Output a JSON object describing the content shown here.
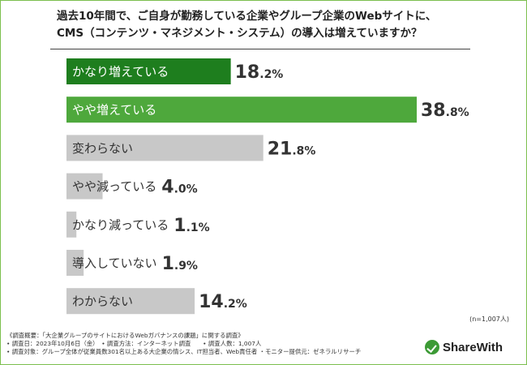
{
  "title": {
    "line1": "過去10年間で、ご自身が勤務している企業やグループ企業のWebサイトに、",
    "line2": "CMS（コンテンツ・マネジメント・システム）の導入は増えていますか？"
  },
  "colors": {
    "dark_green": "#1e7e1e",
    "light_green": "#4ea83c",
    "gray": "#c8c8c8",
    "frame": "#7cbf4e"
  },
  "chart_data": {
    "type": "bar",
    "orientation": "horizontal",
    "title": "過去10年間で、ご自身が勤務している企業やグループ企業のWebサイトに、CMS（コンテンツ・マネジメント・システム）の導入は増えていますか？",
    "categories": [
      "かなり増えている",
      "やや増えている",
      "変わらない",
      "やや減っている",
      "かなり減っている",
      "導入していない",
      "わからない"
    ],
    "values": [
      18.2,
      38.8,
      21.8,
      4.0,
      1.1,
      1.9,
      14.2
    ],
    "value_labels": [
      "18.2%",
      "38.8%",
      "21.8%",
      "4.0%",
      "1.1%",
      "1.9%",
      "14.2%"
    ],
    "bar_colors": [
      "#1e7e1e",
      "#4ea83c",
      "#c8c8c8",
      "#c8c8c8",
      "#c8c8c8",
      "#c8c8c8",
      "#c8c8c8"
    ],
    "label_colors": [
      "#ffffff",
      "#ffffff",
      "#333333",
      "#333333",
      "#333333",
      "#333333",
      "#333333"
    ],
    "unit": "%",
    "xlim": [
      0,
      40
    ],
    "grid": false
  },
  "sample_note": "(n=1,007人)",
  "notes": [
    "《調査概要：「大企業グループのサイトにおけるWebガバナンスの課題」に関する調査》",
    "• 調査日：2023年10月6日（金）　• 調査方法：インターネット調査　　• 調査人数：1,007人",
    "• 調査対象：グループ全体が従業員数301名以上ある大企業の情シス、IT担当者、Web責任者 ・モニター提供元：ゼネラルリサーチ"
  ],
  "logo": {
    "text": "ShareWith"
  }
}
